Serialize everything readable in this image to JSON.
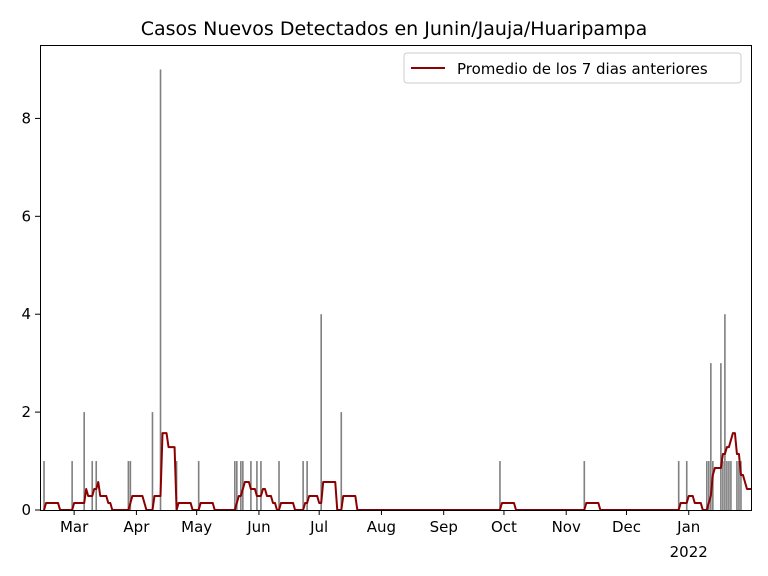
{
  "chart_data": {
    "type": "bar",
    "title": "Casos Nuevos Detectados en Junin/Jauja/Huaripampa",
    "xlabel": "",
    "ylabel": "",
    "x_range": [
      "2021-02-12",
      "2022-02-01"
    ],
    "ylim": [
      0,
      9.5
    ],
    "y_ticks": [
      0,
      2,
      4,
      6,
      8
    ],
    "x_ticks": [
      {
        "date": "2021-03-01",
        "label": "Mar"
      },
      {
        "date": "2021-04-01",
        "label": "Apr"
      },
      {
        "date": "2021-05-01",
        "label": "May"
      },
      {
        "date": "2021-06-01",
        "label": "Jun"
      },
      {
        "date": "2021-07-01",
        "label": "Jul"
      },
      {
        "date": "2021-08-01",
        "label": "Aug"
      },
      {
        "date": "2021-09-01",
        "label": "Sep"
      },
      {
        "date": "2021-10-01",
        "label": "Oct"
      },
      {
        "date": "2021-11-01",
        "label": "Nov"
      },
      {
        "date": "2021-12-01",
        "label": "Dec"
      },
      {
        "date": "2022-01-01",
        "label": "Jan",
        "sublabel": "2022"
      }
    ],
    "grid": false,
    "legend_position": "top-right",
    "series": [
      {
        "kind": "bar",
        "color": "#808080",
        "values": [
          {
            "date": "2021-02-14",
            "value": 1
          },
          {
            "date": "2021-02-28",
            "value": 1
          },
          {
            "date": "2021-03-06",
            "value": 2
          },
          {
            "date": "2021-03-10",
            "value": 1
          },
          {
            "date": "2021-03-12",
            "value": 1
          },
          {
            "date": "2021-03-28",
            "value": 1
          },
          {
            "date": "2021-03-29",
            "value": 1
          },
          {
            "date": "2021-04-09",
            "value": 2
          },
          {
            "date": "2021-04-13",
            "value": 9
          },
          {
            "date": "2021-04-21",
            "value": 1
          },
          {
            "date": "2021-05-02",
            "value": 1
          },
          {
            "date": "2021-05-20",
            "value": 1
          },
          {
            "date": "2021-05-21",
            "value": 1
          },
          {
            "date": "2021-05-23",
            "value": 1
          },
          {
            "date": "2021-05-24",
            "value": 1
          },
          {
            "date": "2021-05-28",
            "value": 1
          },
          {
            "date": "2021-05-31",
            "value": 1
          },
          {
            "date": "2021-06-02",
            "value": 1
          },
          {
            "date": "2021-06-11",
            "value": 1
          },
          {
            "date": "2021-06-23",
            "value": 1
          },
          {
            "date": "2021-06-25",
            "value": 1
          },
          {
            "date": "2021-07-02",
            "value": 4
          },
          {
            "date": "2021-07-12",
            "value": 2
          },
          {
            "date": "2021-09-29",
            "value": 1
          },
          {
            "date": "2021-11-10",
            "value": 1
          },
          {
            "date": "2021-12-27",
            "value": 1
          },
          {
            "date": "2021-12-31",
            "value": 1
          },
          {
            "date": "2022-01-10",
            "value": 1
          },
          {
            "date": "2022-01-11",
            "value": 1
          },
          {
            "date": "2022-01-12",
            "value": 3
          },
          {
            "date": "2022-01-13",
            "value": 1
          },
          {
            "date": "2022-01-17",
            "value": 3
          },
          {
            "date": "2022-01-18",
            "value": 1
          },
          {
            "date": "2022-01-19",
            "value": 4
          },
          {
            "date": "2022-01-20",
            "value": 1
          },
          {
            "date": "2022-01-21",
            "value": 1
          },
          {
            "date": "2022-01-22",
            "value": 1
          },
          {
            "date": "2022-01-25",
            "value": 1
          },
          {
            "date": "2022-01-26",
            "value": 1
          },
          {
            "date": "2022-01-27",
            "value": 1
          }
        ]
      },
      {
        "kind": "line",
        "name": "Promedio de los 7 dias anteriores",
        "color": "#8b0000",
        "note": "trailing 7-day average of the daily bar values"
      }
    ]
  }
}
